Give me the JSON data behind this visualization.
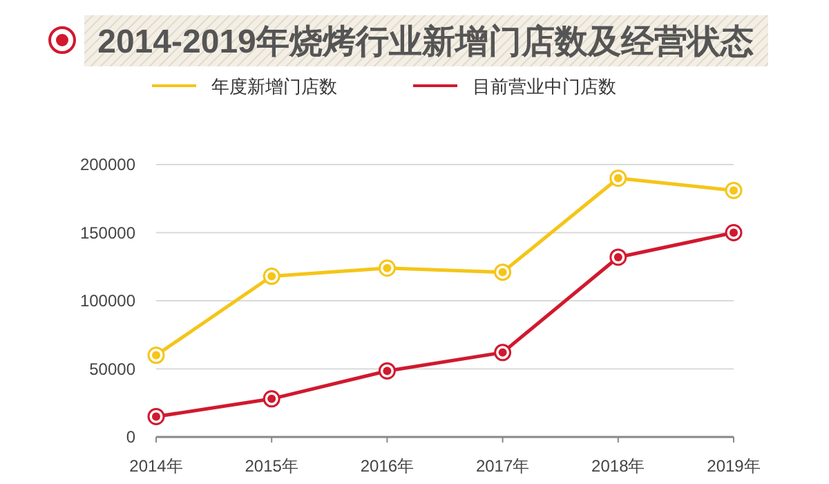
{
  "chart_data": {
    "type": "line",
    "title": "2014-2019年烧烤行业新增门店数及经营状态",
    "categories": [
      "2014年",
      "2015年",
      "2016年",
      "2017年",
      "2018年",
      "2019年"
    ],
    "series": [
      {
        "name": "年度新增门店数",
        "color": "#f5c518",
        "values": [
          60000,
          118000,
          124000,
          121000,
          190000,
          181000
        ]
      },
      {
        "name": "目前营业中门店数",
        "color": "#d0192f",
        "values": [
          15000,
          28000,
          48500,
          62000,
          132000,
          150000
        ]
      }
    ],
    "ylim": [
      0,
      200000
    ],
    "yticks": [
      0,
      50000,
      100000,
      150000,
      200000
    ],
    "grid": "y",
    "legend": "top",
    "marker": "circle",
    "line_style": "solid"
  }
}
